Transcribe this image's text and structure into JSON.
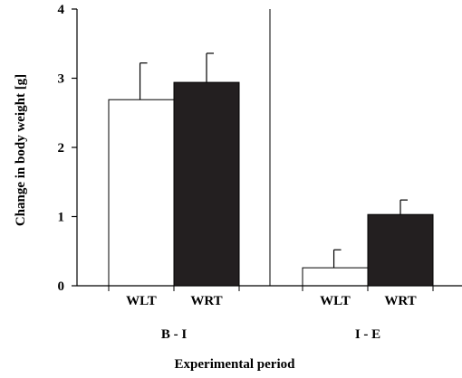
{
  "chart_data": {
    "type": "bar",
    "title": "",
    "ylabel": "Change in body weight [g]",
    "xlabel": "Experimental period",
    "ylim": [
      0,
      4
    ],
    "yticks": [
      "0",
      "1",
      "2",
      "3",
      "4"
    ],
    "grid": false,
    "legend": "none",
    "groups": [
      {
        "name": "B - I",
        "bars": [
          {
            "label": "WLT",
            "value": 2.69,
            "error": 0.53,
            "fill": "#ffffff"
          },
          {
            "label": "WRT",
            "value": 2.94,
            "error": 0.42,
            "fill": "#231f20"
          }
        ]
      },
      {
        "name": "I - E",
        "bars": [
          {
            "label": "WLT",
            "value": 0.26,
            "error": 0.26,
            "fill": "#ffffff"
          },
          {
            "label": "WRT",
            "value": 1.03,
            "error": 0.21,
            "fill": "#231f20"
          }
        ]
      }
    ]
  }
}
